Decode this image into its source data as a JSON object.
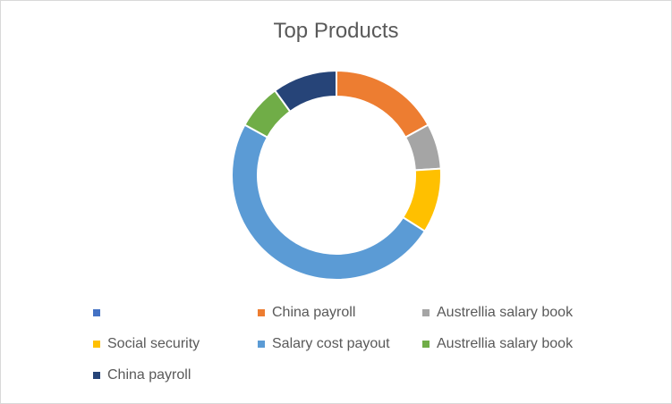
{
  "chart_data": {
    "type": "donut",
    "title": "Top Products",
    "categories": [
      "",
      "China payroll",
      "Austrellia salary book",
      "Social security",
      "Salary cost payout",
      "Austrellia salary book",
      "China payroll"
    ],
    "values": [
      0,
      17,
      7,
      10,
      49,
      7,
      10
    ],
    "colors": [
      "#4472C4",
      "#ED7D31",
      "#A5A5A5",
      "#FFC000",
      "#5B9BD5",
      "#70AD47",
      "#264478"
    ],
    "legend_position": "bottom"
  }
}
